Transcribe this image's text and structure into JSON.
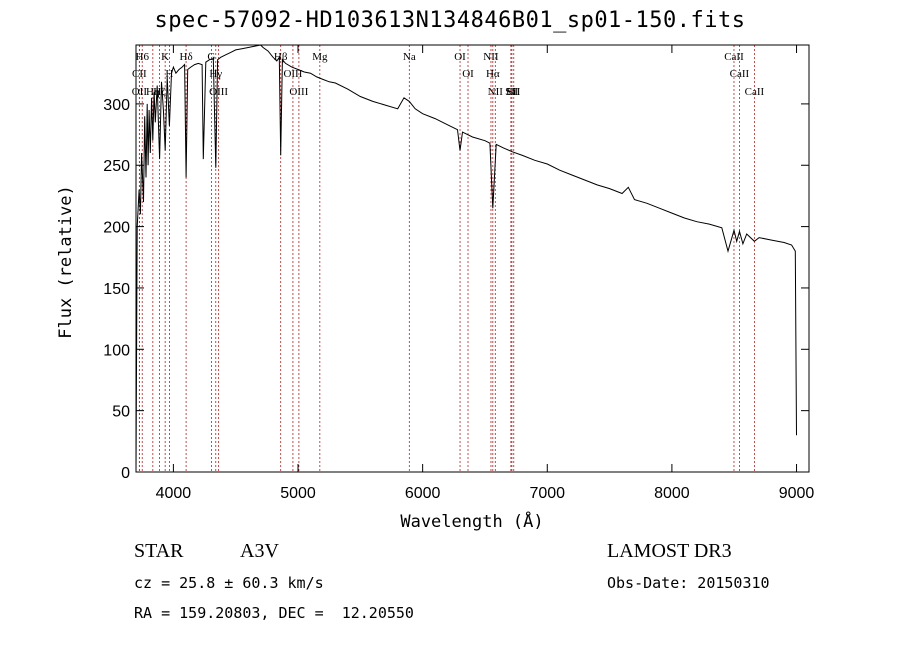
{
  "title": "spec-57092-HD103613N134846B01_sp01-150.fits",
  "object_class": "STAR",
  "subclass": "A3V",
  "survey": "LAMOST DR3",
  "cz": "cz = 25.8 ± 60.3 km/s",
  "obs_date": "Obs-Date: 20150310",
  "coords": "RA = 159.20803, DEC =  12.20550",
  "chart_data": {
    "type": "line",
    "title": "spec-57092-HD103613N134846B01_sp01-150.fits",
    "xlabel": "Wavelength (Å)",
    "ylabel": "Flux (relative)",
    "xlim": [
      3700,
      9100
    ],
    "ylim": [
      0,
      348
    ],
    "xticks": [
      4000,
      5000,
      6000,
      7000,
      8000,
      9000
    ],
    "yticks": [
      0,
      50,
      100,
      150,
      200,
      250,
      300
    ],
    "grid": false,
    "series": [
      {
        "name": "flux",
        "x": [
          3700,
          3710,
          3725,
          3735,
          3745,
          3760,
          3770,
          3780,
          3790,
          3797,
          3805,
          3815,
          3825,
          3835,
          3845,
          3855,
          3870,
          3889,
          3905,
          3920,
          3934,
          3950,
          3968,
          3985,
          4000,
          4020,
          4045,
          4070,
          4090,
          4102,
          4115,
          4140,
          4170,
          4200,
          4230,
          4240,
          4260,
          4290,
          4320,
          4340,
          4355,
          4380,
          4420,
          4460,
          4500,
          4550,
          4600,
          4650,
          4700,
          4720,
          4760,
          4800,
          4830,
          4850,
          4861,
          4875,
          4900,
          4950,
          5000,
          5050,
          5100,
          5150,
          5200,
          5250,
          5300,
          5400,
          5500,
          5600,
          5700,
          5800,
          5850,
          5893,
          5940,
          6000,
          6100,
          6200,
          6280,
          6300,
          6320,
          6400,
          6500,
          6540,
          6563,
          6590,
          6650,
          6720,
          6800,
          6900,
          7000,
          7100,
          7200,
          7300,
          7400,
          7500,
          7600,
          7650,
          7700,
          7800,
          7900,
          8000,
          8100,
          8200,
          8300,
          8400,
          8450,
          8498,
          8520,
          8542,
          8570,
          8600,
          8662,
          8700,
          8800,
          8900,
          8960,
          8990,
          9000
        ],
        "y": [
          0,
          200,
          230,
          210,
          260,
          220,
          290,
          240,
          300,
          250,
          295,
          260,
          305,
          270,
          310,
          285,
          315,
          255,
          318,
          295,
          262,
          322,
          282,
          325,
          330,
          325,
          328,
          330,
          332,
          240,
          328,
          330,
          332,
          333,
          332,
          255,
          334,
          336,
          337,
          248,
          336,
          338,
          340,
          342,
          344,
          345,
          346,
          347,
          348,
          346,
          343,
          338,
          335,
          338,
          258,
          336,
          333,
          330,
          328,
          326,
          325,
          322,
          320,
          318,
          317,
          312,
          306,
          302,
          299,
          296,
          305,
          302,
          296,
          292,
          288,
          283,
          279,
          262,
          277,
          273,
          270,
          268,
          215,
          267,
          264,
          261,
          258,
          254,
          251,
          246,
          242,
          238,
          234,
          231,
          227,
          232,
          222,
          219,
          215,
          211,
          207,
          204,
          202,
          199,
          180,
          197,
          188,
          196,
          186,
          194,
          188,
          191,
          189,
          187,
          185,
          180,
          30
        ]
      }
    ],
    "lines": [
      {
        "label": "H6",
        "wavelength": 3750
      },
      {
        "label": "CII",
        "wavelength": 3727
      },
      {
        "label": "OII",
        "wavelength": 3727
      },
      {
        "label": "Hη",
        "wavelength": 3835
      },
      {
        "label": "K",
        "wavelength": 3934
      },
      {
        "label": "H",
        "wavelength": 3968
      },
      {
        "label": "Hζ",
        "wavelength": 3889
      },
      {
        "label": "Hδ",
        "wavelength": 4102
      },
      {
        "label": "G",
        "wavelength": 4305
      },
      {
        "label": "Hγ",
        "wavelength": 4340
      },
      {
        "label": "OIII",
        "wavelength": 4363
      },
      {
        "label": "Hβ",
        "wavelength": 4861
      },
      {
        "label": "OIII",
        "wavelength": 4959
      },
      {
        "label": "OIII",
        "wavelength": 5007
      },
      {
        "label": "Mg",
        "wavelength": 5175
      },
      {
        "label": "Na",
        "wavelength": 5893
      },
      {
        "label": "OI",
        "wavelength": 6300
      },
      {
        "label": "OI",
        "wavelength": 6364
      },
      {
        "label": "NII",
        "wavelength": 6548
      },
      {
        "label": "Hα",
        "wavelength": 6563
      },
      {
        "label": "NII",
        "wavelength": 6583
      },
      {
        "label": "Li",
        "wavelength": 6708
      },
      {
        "label": "SII",
        "wavelength": 6716
      },
      {
        "label": "SII",
        "wavelength": 6731
      },
      {
        "label": "CaII",
        "wavelength": 8498
      },
      {
        "label": "CaII",
        "wavelength": 8542
      },
      {
        "label": "CaII",
        "wavelength": 8662
      }
    ]
  }
}
